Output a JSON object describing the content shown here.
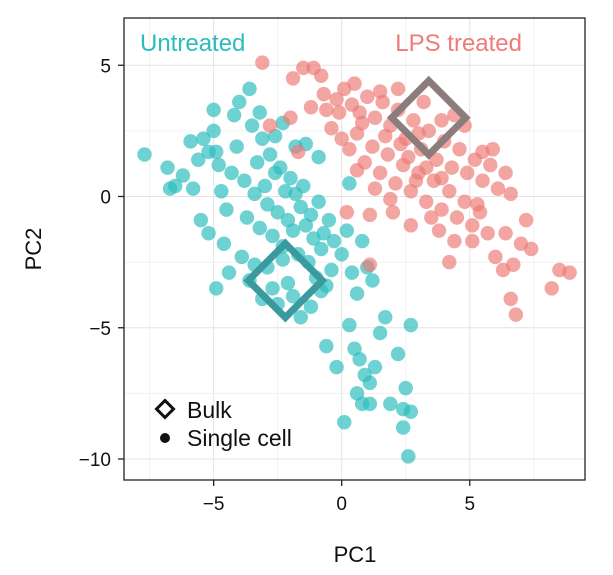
{
  "chart_data": {
    "type": "scatter",
    "xlabel": "PC1",
    "ylabel": "PC2",
    "xlim": [
      -8.5,
      9.5
    ],
    "ylim": [
      -10.8,
      6.8
    ],
    "xticks": [
      -5,
      0,
      5
    ],
    "yticks": [
      5,
      0,
      -5,
      -10
    ],
    "xtick_labels": [
      "−5",
      "0",
      "5"
    ],
    "ytick_labels": [
      "5",
      "0",
      "−5",
      "−10"
    ],
    "grid": true,
    "group_labels": [
      {
        "name": "untreated",
        "text": "Untreated",
        "color": "#2bbcbd"
      },
      {
        "name": "lps-treated",
        "text": "LPS treated",
        "color": "#ee7b76"
      }
    ],
    "series": [
      {
        "name": "Untreated",
        "marker": "single-cell",
        "color": "#2bbcbd",
        "points": [
          [
            -7.7,
            1.6
          ],
          [
            -6.8,
            1.1
          ],
          [
            -6.5,
            0.4
          ],
          [
            -6.2,
            0.8
          ],
          [
            -5.8,
            0.3
          ],
          [
            -5.6,
            1.4
          ],
          [
            -5.4,
            2.2
          ],
          [
            -5.2,
            1.7
          ],
          [
            -5.0,
            2.5
          ],
          [
            -4.8,
            1.2
          ],
          [
            -4.7,
            0.2
          ],
          [
            -4.5,
            -0.5
          ],
          [
            -4.3,
            0.9
          ],
          [
            -4.1,
            1.9
          ],
          [
            -4.0,
            3.6
          ],
          [
            -3.8,
            0.6
          ],
          [
            -3.7,
            -0.8
          ],
          [
            -3.5,
            2.7
          ],
          [
            -3.4,
            0.1
          ],
          [
            -3.3,
            1.3
          ],
          [
            -3.2,
            -1.2
          ],
          [
            -3.1,
            2.2
          ],
          [
            -3.0,
            0.4
          ],
          [
            -2.9,
            -0.3
          ],
          [
            -2.8,
            1.6
          ],
          [
            -2.7,
            -1.5
          ],
          [
            -2.6,
            0.9
          ],
          [
            -2.5,
            -0.6
          ],
          [
            -2.4,
            1.1
          ],
          [
            -2.3,
            -1.9
          ],
          [
            -2.2,
            0.2
          ],
          [
            -2.1,
            -0.9
          ],
          [
            -2.0,
            0.7
          ],
          [
            -1.9,
            -1.3
          ],
          [
            -1.8,
            0.1
          ],
          [
            -1.7,
            -2.2
          ],
          [
            -1.6,
            -0.4
          ],
          [
            -1.5,
            0.4
          ],
          [
            -1.4,
            -1.1
          ],
          [
            -1.3,
            -2.5
          ],
          [
            -1.2,
            -0.7
          ],
          [
            -1.1,
            -1.6
          ],
          [
            -1.0,
            -3.1
          ],
          [
            -0.9,
            -0.2
          ],
          [
            -0.8,
            -2.0
          ],
          [
            -0.7,
            -1.4
          ],
          [
            -0.6,
            -3.4
          ],
          [
            -0.5,
            -0.9
          ],
          [
            -0.4,
            -2.8
          ],
          [
            -0.3,
            -1.7
          ],
          [
            -3.9,
            -2.3
          ],
          [
            -3.6,
            -3.2
          ],
          [
            -3.4,
            -2.6
          ],
          [
            -3.1,
            -3.9
          ],
          [
            -2.9,
            -2.7
          ],
          [
            -2.7,
            -3.5
          ],
          [
            -2.5,
            -4.1
          ],
          [
            -2.3,
            -2.4
          ],
          [
            -2.1,
            -3.3
          ],
          [
            -1.9,
            -3.8
          ],
          [
            -4.9,
            -3.5
          ],
          [
            -5.2,
            -1.4
          ],
          [
            -5.5,
            -0.9
          ],
          [
            -4.6,
            -1.8
          ],
          [
            -4.4,
            -2.9
          ],
          [
            -1.6,
            -4.6
          ],
          [
            -1.2,
            -4.2
          ],
          [
            -0.8,
            -3.6
          ],
          [
            0.0,
            -2.2
          ],
          [
            0.2,
            -1.3
          ],
          [
            0.4,
            -2.9
          ],
          [
            0.6,
            -3.7
          ],
          [
            0.3,
            -4.9
          ],
          [
            0.5,
            -5.8
          ],
          [
            0.7,
            -6.2
          ],
          [
            0.9,
            -6.8
          ],
          [
            1.1,
            -7.1
          ],
          [
            0.6,
            -7.5
          ],
          [
            0.8,
            -7.9
          ],
          [
            1.3,
            -6.5
          ],
          [
            1.5,
            -5.2
          ],
          [
            1.7,
            -4.6
          ],
          [
            1.2,
            -3.2
          ],
          [
            1.0,
            -2.7
          ],
          [
            0.8,
            -1.7
          ],
          [
            -0.6,
            -5.7
          ],
          [
            -0.2,
            -6.5
          ],
          [
            0.1,
            -8.6
          ],
          [
            1.1,
            -7.9
          ],
          [
            1.9,
            -7.9
          ],
          [
            2.5,
            -7.3
          ],
          [
            2.4,
            -8.1
          ],
          [
            2.7,
            -8.2
          ],
          [
            2.4,
            -8.8
          ],
          [
            2.6,
            -9.9
          ],
          [
            2.7,
            -4.9
          ],
          [
            2.2,
            -6.0
          ],
          [
            0.3,
            0.5
          ],
          [
            -2.3,
            2.8
          ],
          [
            -1.8,
            1.9
          ],
          [
            -3.6,
            4.1
          ],
          [
            -4.2,
            3.1
          ],
          [
            -5.0,
            3.3
          ],
          [
            -4.9,
            1.7
          ],
          [
            -3.2,
            3.2
          ],
          [
            -2.6,
            2.3
          ],
          [
            -1.4,
            2.0
          ],
          [
            -0.9,
            1.5
          ],
          [
            -5.9,
            2.1
          ],
          [
            -6.7,
            0.3
          ]
        ]
      },
      {
        "name": "LPS treated",
        "marker": "single-cell",
        "color": "#ee7b76",
        "points": [
          [
            -3.1,
            5.1
          ],
          [
            -1.9,
            4.5
          ],
          [
            -1.1,
            4.9
          ],
          [
            -0.7,
            3.9
          ],
          [
            -0.2,
            3.7
          ],
          [
            0.1,
            4.1
          ],
          [
            0.4,
            3.5
          ],
          [
            0.7,
            3.2
          ],
          [
            1.0,
            3.8
          ],
          [
            1.3,
            3.0
          ],
          [
            1.6,
            3.6
          ],
          [
            1.9,
            2.7
          ],
          [
            2.2,
            3.3
          ],
          [
            2.5,
            2.2
          ],
          [
            2.8,
            2.9
          ],
          [
            3.1,
            1.8
          ],
          [
            3.4,
            2.5
          ],
          [
            3.7,
            1.4
          ],
          [
            4.0,
            2.1
          ],
          [
            4.3,
            1.1
          ],
          [
            4.6,
            1.8
          ],
          [
            4.9,
            0.9
          ],
          [
            5.2,
            1.4
          ],
          [
            5.5,
            0.6
          ],
          [
            5.8,
            1.2
          ],
          [
            6.1,
            0.3
          ],
          [
            6.4,
            0.9
          ],
          [
            -0.4,
            2.6
          ],
          [
            0.0,
            2.2
          ],
          [
            0.3,
            1.8
          ],
          [
            0.6,
            2.4
          ],
          [
            0.9,
            1.3
          ],
          [
            1.2,
            1.9
          ],
          [
            1.5,
            0.9
          ],
          [
            1.8,
            1.6
          ],
          [
            2.1,
            0.5
          ],
          [
            2.4,
            1.2
          ],
          [
            2.7,
            0.2
          ],
          [
            3.0,
            0.9
          ],
          [
            3.3,
            -0.2
          ],
          [
            3.6,
            0.6
          ],
          [
            3.9,
            -0.5
          ],
          [
            4.2,
            0.2
          ],
          [
            4.5,
            -0.8
          ],
          [
            4.8,
            -0.2
          ],
          [
            5.1,
            -1.1
          ],
          [
            5.4,
            -0.6
          ],
          [
            5.7,
            -1.4
          ],
          [
            6.0,
            -2.3
          ],
          [
            6.3,
            -2.8
          ],
          [
            6.7,
            -2.6
          ],
          [
            7.0,
            -1.8
          ],
          [
            6.8,
            -4.5
          ],
          [
            6.6,
            -3.9
          ],
          [
            7.4,
            -2.0
          ],
          [
            8.2,
            -3.5
          ],
          [
            8.9,
            -2.9
          ],
          [
            8.5,
            -2.8
          ],
          [
            7.2,
            -0.9
          ],
          [
            6.6,
            0.1
          ],
          [
            5.1,
            -1.7
          ],
          [
            4.2,
            -2.5
          ],
          [
            3.8,
            -1.3
          ],
          [
            2.7,
            -1.1
          ],
          [
            2.0,
            -0.6
          ],
          [
            1.1,
            -0.7
          ],
          [
            0.2,
            -0.6
          ],
          [
            1.1,
            -2.6
          ],
          [
            -1.2,
            3.4
          ],
          [
            -0.8,
            4.6
          ],
          [
            0.5,
            4.3
          ],
          [
            1.5,
            4.0
          ],
          [
            2.2,
            4.1
          ],
          [
            3.0,
            2.4
          ],
          [
            3.2,
            3.6
          ],
          [
            3.9,
            2.9
          ],
          [
            4.4,
            3.1
          ],
          [
            4.8,
            2.7
          ],
          [
            5.5,
            1.7
          ],
          [
            5.9,
            1.8
          ],
          [
            2.3,
            2.0
          ],
          [
            2.6,
            1.5
          ],
          [
            3.3,
            1.1
          ],
          [
            1.7,
            2.3
          ],
          [
            0.8,
            2.8
          ],
          [
            -0.1,
            3.2
          ],
          [
            -0.6,
            3.3
          ],
          [
            -1.5,
            4.9
          ],
          [
            -2.0,
            3.0
          ],
          [
            -2.8,
            2.7
          ],
          [
            -1.7,
            1.7
          ],
          [
            3.5,
            -0.8
          ],
          [
            4.4,
            -1.7
          ],
          [
            2.9,
            0.6
          ],
          [
            3.9,
            0.7
          ],
          [
            6.4,
            -1.4
          ],
          [
            5.3,
            -0.3
          ],
          [
            1.3,
            0.3
          ],
          [
            1.9,
            -0.1
          ],
          [
            0.6,
            1.0
          ]
        ]
      }
    ],
    "bulk_points": [
      {
        "series": "Untreated",
        "x": -2.2,
        "y": -3.2,
        "color": "#3a9a9e"
      },
      {
        "series": "LPS treated",
        "x": 3.4,
        "y": 3.0,
        "color": "#8c7d7c"
      }
    ],
    "legend": {
      "position": "bottom-left",
      "entries": [
        {
          "marker": "diamond",
          "label": "Bulk"
        },
        {
          "marker": "dot",
          "label": "Single cell"
        }
      ]
    }
  }
}
